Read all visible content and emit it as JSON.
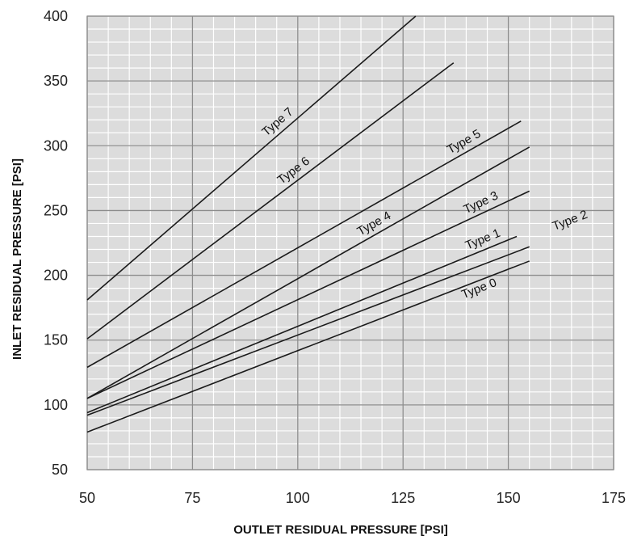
{
  "chart_data": {
    "type": "line",
    "title": "",
    "xlabel": "OUTLET RESIDUAL PRESSURE [PSI]",
    "ylabel": "INLET RESIDUAL PRESSURE [PSI]",
    "xlim": [
      50,
      175
    ],
    "ylim": [
      50,
      400
    ],
    "xticks": [
      50,
      75,
      100,
      125,
      150,
      175
    ],
    "yticks": [
      50,
      100,
      150,
      200,
      250,
      300,
      350,
      400
    ],
    "grid": true,
    "grid_minor_x": 5,
    "grid_minor_y": 10,
    "colors": {
      "plot_bg": "#dcdcdc",
      "minor_grid": "#ffffff",
      "major_grid": "#8c8c8c",
      "line": "#1a1a1a"
    },
    "series": [
      {
        "name": "Type 7",
        "x": [
          50,
          128
        ],
        "y": [
          181,
          400
        ]
      },
      {
        "name": "Type 6",
        "x": [
          50,
          137
        ],
        "y": [
          151,
          364
        ]
      },
      {
        "name": "Type 5",
        "x": [
          50,
          153
        ],
        "y": [
          129,
          319
        ]
      },
      {
        "name": "Type 4",
        "x": [
          50,
          155
        ],
        "y": [
          105,
          299
        ]
      },
      {
        "name": "Type 3",
        "x": [
          50,
          155
        ],
        "y": [
          105,
          265
        ]
      },
      {
        "name": "Type 1",
        "x": [
          50,
          152
        ],
        "y": [
          94,
          230
        ]
      },
      {
        "name": "Type 2",
        "x": [
          50,
          155
        ],
        "y": [
          92,
          222
        ]
      },
      {
        "name": "Type 0",
        "x": [
          50,
          155
        ],
        "y": [
          79,
          211
        ]
      }
    ]
  }
}
